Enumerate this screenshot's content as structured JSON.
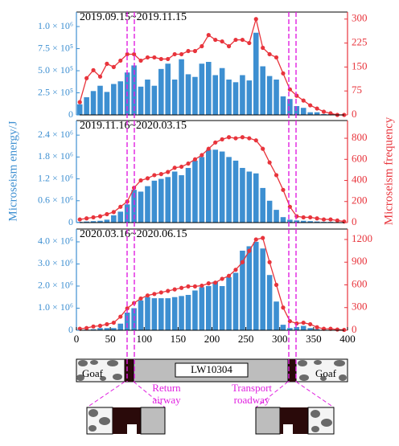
{
  "chart_data": [
    {
      "type": "combo",
      "title": "2019.09.15~2019.11.15",
      "x": [
        5,
        15,
        25,
        35,
        45,
        55,
        65,
        75,
        85,
        95,
        105,
        115,
        125,
        135,
        145,
        155,
        165,
        175,
        185,
        195,
        205,
        215,
        225,
        235,
        245,
        255,
        265,
        275,
        285,
        295,
        305,
        315,
        325,
        335,
        345,
        355,
        365,
        375,
        385,
        395
      ],
      "series": [
        {
          "type": "bar",
          "color": "#3d8fd1",
          "values": [
            120000,
            200000,
            270000,
            330000,
            260000,
            350000,
            380000,
            480000,
            560000,
            320000,
            400000,
            330000,
            520000,
            580000,
            400000,
            630000,
            460000,
            430000,
            580000,
            600000,
            450000,
            530000,
            400000,
            370000,
            450000,
            390000,
            930000,
            550000,
            440000,
            400000,
            210000,
            180000,
            100000,
            80000,
            30000,
            30000,
            10000,
            10000,
            0,
            0
          ]
        },
        {
          "type": "line",
          "axis": "y2",
          "color": "#e8343c",
          "values": [
            40,
            115,
            140,
            120,
            160,
            150,
            170,
            190,
            190,
            170,
            180,
            180,
            175,
            175,
            190,
            190,
            200,
            200,
            215,
            250,
            235,
            230,
            215,
            235,
            235,
            225,
            300,
            210,
            190,
            180,
            130,
            80,
            60,
            45,
            30,
            20,
            10,
            5,
            0,
            0
          ]
        }
      ],
      "xlim": [
        0,
        400
      ],
      "ylim": [
        0,
        1164000
      ],
      "yticks": [
        0,
        {
          "value": 250000,
          "label": "2.5 × 10⁵"
        },
        {
          "value": 500000,
          "label": "5.0 × 10⁵"
        },
        {
          "value": 750000,
          "label": "7.5 × 10⁵"
        },
        {
          "value": 1000000,
          "label": "1.0 × 10⁶"
        }
      ],
      "y2lim": [
        0,
        322
      ],
      "y2ticks": [
        0,
        75,
        150,
        225,
        300
      ]
    },
    {
      "type": "combo",
      "title": "2019.11.16~2020.03.15",
      "ylabel": "Microseism energy/J",
      "y2label": "Microseism frequency",
      "x": [
        5,
        15,
        25,
        35,
        45,
        55,
        65,
        75,
        85,
        95,
        105,
        115,
        125,
        135,
        145,
        155,
        165,
        175,
        185,
        195,
        205,
        215,
        225,
        235,
        245,
        255,
        265,
        275,
        285,
        295,
        305,
        315,
        325,
        335,
        345,
        355,
        365,
        375,
        385,
        395
      ],
      "series": [
        {
          "type": "bar",
          "color": "#3d8fd1",
          "values": [
            20000,
            30000,
            40000,
            50000,
            80000,
            200000,
            300000,
            500000,
            900000,
            850000,
            1000000,
            1150000,
            1200000,
            1250000,
            1400000,
            1300000,
            1500000,
            1700000,
            1800000,
            2000000,
            2000000,
            1950000,
            1800000,
            1700000,
            1500000,
            1400000,
            1350000,
            950000,
            600000,
            350000,
            150000,
            80000,
            60000,
            50000,
            40000,
            30000,
            20000,
            20000,
            10000,
            10000
          ]
        },
        {
          "type": "line",
          "axis": "y2",
          "color": "#e8343c",
          "values": [
            30,
            40,
            50,
            60,
            80,
            100,
            150,
            200,
            330,
            400,
            420,
            450,
            460,
            480,
            520,
            530,
            560,
            600,
            640,
            700,
            760,
            790,
            810,
            800,
            810,
            800,
            780,
            700,
            570,
            450,
            310,
            150,
            60,
            50,
            50,
            40,
            30,
            30,
            20,
            10
          ]
        }
      ],
      "xlim": [
        0,
        400
      ],
      "ylim": [
        0,
        2800000
      ],
      "yticks": [
        0,
        {
          "value": 600000,
          "label": "0.6 × 10⁶"
        },
        {
          "value": 1200000,
          "label": "1.2 × 10⁶"
        },
        {
          "value": 1800000,
          "label": "1.8 × 10⁶"
        },
        {
          "value": 2400000,
          "label": "2.4 × 10⁶"
        }
      ],
      "y2lim": [
        0,
        968
      ],
      "y2ticks": [
        0,
        200,
        400,
        600,
        800
      ]
    },
    {
      "type": "combo",
      "title": "2020.03.16~2020.06.15",
      "x": [
        5,
        15,
        25,
        35,
        45,
        55,
        65,
        75,
        85,
        95,
        105,
        115,
        125,
        135,
        145,
        155,
        165,
        175,
        185,
        195,
        205,
        215,
        225,
        235,
        245,
        255,
        265,
        275,
        285,
        295,
        305,
        315,
        325,
        335,
        345,
        355,
        365,
        375,
        385,
        395
      ],
      "series": [
        {
          "type": "bar",
          "color": "#3d8fd1",
          "values": [
            20000,
            30000,
            50000,
            100000,
            100000,
            100000,
            300000,
            800000,
            1000000,
            1350000,
            1500000,
            1450000,
            1450000,
            1450000,
            1500000,
            1550000,
            1600000,
            1800000,
            1950000,
            2000000,
            2200000,
            2000000,
            2400000,
            2600000,
            3600000,
            3800000,
            4000000,
            3700000,
            2500000,
            1300000,
            250000,
            100000,
            150000,
            200000,
            100000,
            50000,
            30000,
            20000,
            10000,
            10000
          ]
        },
        {
          "type": "line",
          "axis": "y2",
          "color": "#e8343c",
          "values": [
            20,
            30,
            50,
            60,
            80,
            100,
            180,
            290,
            360,
            420,
            460,
            480,
            500,
            520,
            540,
            560,
            580,
            580,
            590,
            620,
            630,
            680,
            720,
            800,
            900,
            1050,
            1200,
            1220,
            900,
            600,
            300,
            120,
            90,
            100,
            80,
            40,
            20,
            20,
            10,
            5
          ]
        }
      ],
      "xlim": [
        0,
        400
      ],
      "xticks": [
        0,
        50,
        100,
        150,
        200,
        250,
        300,
        350,
        400
      ],
      "ylim": [
        0,
        4580000
      ],
      "yticks": [
        0,
        {
          "value": 1000000,
          "label": "1.0 × 10⁶"
        },
        {
          "value": 2000000,
          "label": "2.0 × 10⁶"
        },
        {
          "value": 3000000,
          "label": "3.0 × 10⁶"
        },
        {
          "value": 4000000,
          "label": "4.0 × 10⁶"
        }
      ],
      "y2lim": [
        0,
        1338
      ],
      "y2ticks": [
        0,
        300,
        600,
        900,
        1200
      ]
    }
  ],
  "diagram": {
    "goaf_left": "Goaf",
    "goaf_right": "Goaf",
    "panel": "LW10304",
    "return_airway": [
      "Return",
      "airway"
    ],
    "transport_roadway": [
      "Transport",
      "roadway"
    ]
  }
}
